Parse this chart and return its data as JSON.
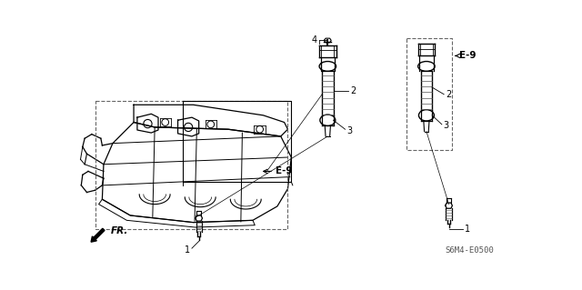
{
  "bg_color": "#ffffff",
  "labels": {
    "E9": "E-9",
    "FR": "FR.",
    "code": "S6M4-E0500"
  },
  "figsize": [
    6.4,
    3.19
  ],
  "dpi": 100
}
